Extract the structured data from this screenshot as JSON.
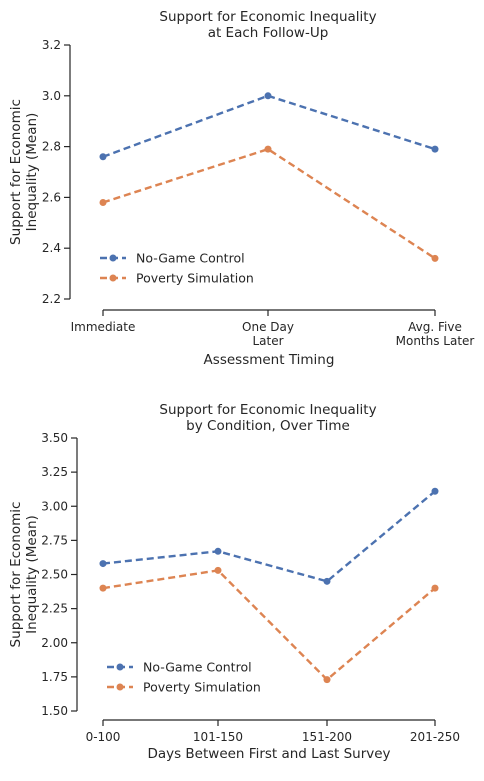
{
  "chart_data": [
    {
      "type": "line",
      "title": [
        "Support for Economic Inequality",
        "at Each Follow-Up"
      ],
      "xlabel": "Assessment Timing",
      "ylabel": [
        "Support for Economic",
        "Inequality (Mean)"
      ],
      "categories": [
        [
          "Immediate"
        ],
        [
          "One Day",
          "Later"
        ],
        [
          "Avg. Five",
          "Months Later"
        ]
      ],
      "ylim": [
        2.2,
        3.2
      ],
      "yticks": [
        "2.2",
        "2.4",
        "2.6",
        "2.8",
        "3.0",
        "3.2"
      ],
      "legend_position": "lower-left",
      "series": [
        {
          "name": "No-Game Control",
          "color": "#4c72b0",
          "values": [
            2.76,
            3.0,
            2.79
          ]
        },
        {
          "name": "Poverty Simulation",
          "color": "#dd8452",
          "values": [
            2.58,
            2.79,
            2.36
          ]
        }
      ]
    },
    {
      "type": "line",
      "title": [
        "Support for Economic Inequality",
        "by Condition, Over Time"
      ],
      "xlabel": "Days Between First and Last Survey",
      "ylabel": [
        "Support for Economic",
        "Inequality (Mean)"
      ],
      "categories": [
        [
          "0-100"
        ],
        [
          "101-150"
        ],
        [
          "151-200"
        ],
        [
          "201-250"
        ]
      ],
      "ylim": [
        1.5,
        3.5
      ],
      "yticks": [
        "1.50",
        "1.75",
        "2.00",
        "2.25",
        "2.50",
        "2.75",
        "3.00",
        "3.25",
        "3.50"
      ],
      "legend_position": "lower-left",
      "series": [
        {
          "name": "No-Game Control",
          "color": "#4c72b0",
          "values": [
            2.58,
            2.67,
            2.45,
            3.11
          ]
        },
        {
          "name": "Poverty Simulation",
          "color": "#dd8452",
          "values": [
            2.4,
            2.53,
            1.73,
            2.4
          ]
        }
      ]
    }
  ]
}
